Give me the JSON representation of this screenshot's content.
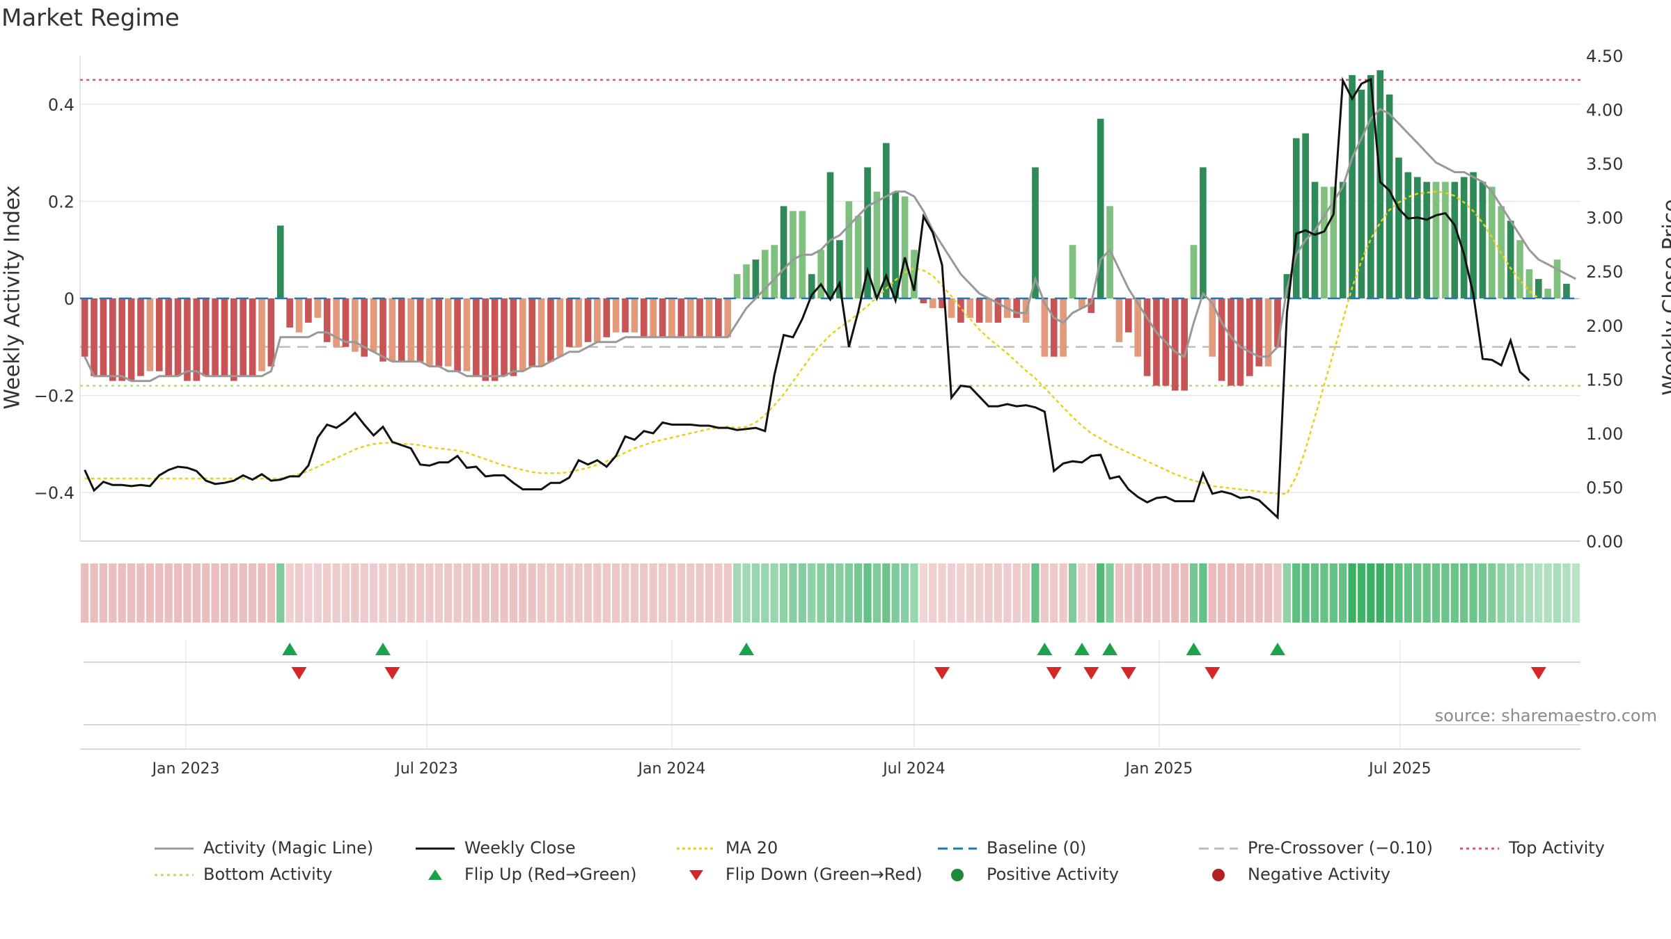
{
  "title": "Market Regime",
  "source": "source: sharemaestro.com",
  "colors": {
    "pos_dark": "#2e8b57",
    "pos_light": "#7fc07f",
    "neg_dark": "#c85455",
    "neg_light": "#e39a7b",
    "magic": "#999999",
    "close": "#111111",
    "ma": "#e6d21c",
    "baseline": "#1f77b4",
    "precross": "#bdbdbd",
    "top": "#e0536a",
    "bottom": "#b8dc6e",
    "flip_up": "#1aa34a",
    "flip_down": "#d62728"
  },
  "chart_data": {
    "type": "bar+line",
    "x_start_week": "2022-10-17",
    "x_ticks": [
      "Jan 2023",
      "Jul 2023",
      "Jan 2024",
      "Jul 2024",
      "Jan 2025",
      "Jul 2025"
    ],
    "y_left": {
      "label": "Weekly Activity Index",
      "lim": [
        -0.5,
        0.5
      ],
      "ticks": [
        -0.4,
        -0.2,
        0,
        0.2,
        0.4
      ],
      "tick_labels": [
        "−0.4",
        "−0.2",
        "0",
        "0.2",
        "0.4"
      ]
    },
    "y_right": {
      "label": "Weekly Close Price",
      "lim": [
        0,
        4.5
      ],
      "ticks": [
        0,
        0.5,
        1,
        1.5,
        2,
        2.5,
        3,
        3.5,
        4,
        4.5
      ],
      "tick_labels": [
        "0.00",
        "0.50",
        "1.00",
        "1.50",
        "2.00",
        "2.50",
        "3.00",
        "3.50",
        "4.00",
        "4.50"
      ]
    },
    "reference_lines": {
      "baseline": 0,
      "pre_crossover": -0.1,
      "top_activity": 0.45,
      "bottom_activity": -0.18
    },
    "activity": [
      -0.12,
      -0.16,
      -0.16,
      -0.17,
      -0.17,
      -0.17,
      -0.16,
      -0.15,
      -0.15,
      -0.16,
      -0.16,
      -0.17,
      -0.17,
      -0.16,
      -0.16,
      -0.16,
      -0.17,
      -0.16,
      -0.16,
      -0.15,
      -0.14,
      0.15,
      -0.06,
      -0.07,
      -0.05,
      -0.04,
      -0.09,
      -0.1,
      -0.1,
      -0.11,
      -0.12,
      -0.11,
      -0.13,
      -0.13,
      -0.13,
      -0.13,
      -0.13,
      -0.14,
      -0.14,
      -0.14,
      -0.15,
      -0.15,
      -0.16,
      -0.17,
      -0.17,
      -0.16,
      -0.16,
      -0.15,
      -0.14,
      -0.14,
      -0.13,
      -0.12,
      -0.1,
      -0.1,
      -0.09,
      -0.09,
      -0.08,
      -0.07,
      -0.07,
      -0.07,
      -0.08,
      -0.08,
      -0.08,
      -0.08,
      -0.08,
      -0.08,
      -0.08,
      -0.08,
      -0.08,
      -0.08,
      0.05,
      0.07,
      0.08,
      0.1,
      0.11,
      0.19,
      0.18,
      0.18,
      0.05,
      0.1,
      0.26,
      0.12,
      0.2,
      0.17,
      0.27,
      0.22,
      0.32,
      0.22,
      0.21,
      0.1,
      -0.01,
      -0.02,
      -0.02,
      -0.04,
      -0.05,
      -0.04,
      -0.05,
      -0.05,
      -0.05,
      -0.04,
      -0.04,
      -0.05,
      0.27,
      -0.12,
      -0.12,
      -0.12,
      0.11,
      -0.02,
      -0.03,
      0.37,
      0.19,
      -0.09,
      -0.07,
      -0.12,
      -0.16,
      -0.18,
      -0.18,
      -0.19,
      -0.19,
      0.11,
      0.27,
      -0.12,
      -0.17,
      -0.18,
      -0.18,
      -0.16,
      -0.14,
      -0.14,
      -0.1,
      0.05,
      0.33,
      0.34,
      0.24,
      0.23,
      0.23,
      0.24,
      0.46,
      0.43,
      0.46,
      0.47,
      0.42,
      0.29,
      0.26,
      0.25,
      0.24,
      0.24,
      0.24,
      0.24,
      0.25,
      0.26,
      0.24,
      0.23,
      0.19,
      0.16,
      0.12,
      0.06,
      0.04,
      0.02,
      0.08,
      0.03,
      0.0
    ],
    "magic_line": [
      -0.12,
      -0.16,
      -0.16,
      -0.16,
      -0.16,
      -0.17,
      -0.17,
      -0.17,
      -0.16,
      -0.16,
      -0.16,
      -0.15,
      -0.15,
      -0.16,
      -0.16,
      -0.16,
      -0.16,
      -0.16,
      -0.16,
      -0.16,
      -0.15,
      -0.08,
      -0.08,
      -0.08,
      -0.08,
      -0.07,
      -0.07,
      -0.08,
      -0.09,
      -0.09,
      -0.1,
      -0.11,
      -0.12,
      -0.13,
      -0.13,
      -0.13,
      -0.13,
      -0.14,
      -0.14,
      -0.15,
      -0.15,
      -0.16,
      -0.16,
      -0.16,
      -0.16,
      -0.16,
      -0.15,
      -0.15,
      -0.14,
      -0.14,
      -0.13,
      -0.12,
      -0.11,
      -0.11,
      -0.1,
      -0.09,
      -0.09,
      -0.09,
      -0.08,
      -0.08,
      -0.08,
      -0.08,
      -0.08,
      -0.08,
      -0.08,
      -0.08,
      -0.08,
      -0.08,
      -0.08,
      -0.08,
      -0.05,
      -0.02,
      0.0,
      0.02,
      0.04,
      0.06,
      0.08,
      0.09,
      0.09,
      0.1,
      0.12,
      0.13,
      0.15,
      0.17,
      0.19,
      0.2,
      0.21,
      0.22,
      0.22,
      0.21,
      0.18,
      0.14,
      0.11,
      0.08,
      0.05,
      0.03,
      0.01,
      0.0,
      -0.01,
      -0.02,
      -0.03,
      -0.03,
      0.04,
      -0.01,
      -0.04,
      -0.05,
      -0.03,
      -0.02,
      -0.01,
      0.08,
      0.1,
      0.06,
      0.02,
      -0.01,
      -0.04,
      -0.07,
      -0.09,
      -0.11,
      -0.12,
      -0.05,
      0.01,
      -0.01,
      -0.05,
      -0.08,
      -0.1,
      -0.11,
      -0.12,
      -0.12,
      -0.1,
      0.02,
      0.09,
      0.12,
      0.14,
      0.17,
      0.2,
      0.23,
      0.29,
      0.33,
      0.37,
      0.39,
      0.38,
      0.36,
      0.34,
      0.32,
      0.3,
      0.28,
      0.27,
      0.26,
      0.26,
      0.25,
      0.24,
      0.22,
      0.19,
      0.16,
      0.13,
      0.1,
      0.08,
      0.07,
      0.06,
      0.05,
      0.04
    ],
    "weekly_close": [
      0.66,
      0.47,
      0.55,
      0.52,
      0.52,
      0.51,
      0.52,
      0.51,
      0.61,
      0.66,
      0.69,
      0.68,
      0.65,
      0.56,
      0.53,
      0.54,
      0.56,
      0.61,
      0.57,
      0.62,
      0.56,
      0.57,
      0.6,
      0.6,
      0.7,
      0.96,
      1.08,
      1.05,
      1.11,
      1.19,
      1.08,
      0.98,
      1.06,
      0.92,
      0.89,
      0.86,
      0.71,
      0.7,
      0.73,
      0.73,
      0.79,
      0.68,
      0.69,
      0.6,
      0.61,
      0.61,
      0.54,
      0.48,
      0.48,
      0.48,
      0.54,
      0.54,
      0.59,
      0.75,
      0.71,
      0.75,
      0.69,
      0.79,
      0.97,
      0.94,
      1.02,
      1.0,
      1.1,
      1.08,
      1.08,
      1.08,
      1.07,
      1.07,
      1.05,
      1.05,
      1.03,
      1.04,
      1.05,
      1.02,
      1.54,
      1.91,
      1.89,
      2.06,
      2.28,
      2.38,
      2.24,
      2.39,
      1.8,
      2.13,
      2.51,
      2.25,
      2.46,
      2.23,
      2.63,
      2.32,
      3.01,
      2.86,
      2.56,
      1.33,
      1.44,
      1.43,
      1.34,
      1.25,
      1.25,
      1.27,
      1.25,
      1.26,
      1.24,
      1.2,
      0.65,
      0.72,
      0.74,
      0.73,
      0.79,
      0.8,
      0.58,
      0.6,
      0.48,
      0.41,
      0.36,
      0.4,
      0.41,
      0.37,
      0.37,
      0.37,
      0.63,
      0.44,
      0.46,
      0.44,
      0.4,
      0.41,
      0.38,
      0.3,
      0.22,
      2.12,
      2.85,
      2.88,
      2.84,
      2.87,
      3.03,
      4.27,
      4.1,
      4.24,
      4.28,
      3.33,
      3.25,
      3.08,
      2.99,
      3.0,
      2.98,
      3.02,
      3.04,
      2.93,
      2.66,
      2.29,
      1.69,
      1.68,
      1.63,
      1.86,
      1.57,
      1.49
    ],
    "ma20": [
      0.58,
      0.58,
      0.58,
      0.58,
      0.58,
      0.58,
      0.58,
      0.58,
      0.58,
      0.58,
      0.58,
      0.58,
      0.58,
      0.58,
      0.58,
      0.58,
      0.58,
      0.58,
      0.58,
      0.58,
      0.58,
      0.58,
      0.6,
      0.62,
      0.65,
      0.69,
      0.73,
      0.77,
      0.81,
      0.85,
      0.88,
      0.9,
      0.91,
      0.91,
      0.9,
      0.9,
      0.89,
      0.87,
      0.86,
      0.85,
      0.84,
      0.82,
      0.79,
      0.76,
      0.73,
      0.7,
      0.68,
      0.66,
      0.64,
      0.63,
      0.63,
      0.63,
      0.64,
      0.66,
      0.68,
      0.71,
      0.74,
      0.78,
      0.82,
      0.86,
      0.89,
      0.92,
      0.94,
      0.96,
      0.98,
      1.0,
      1.02,
      1.04,
      1.05,
      1.06,
      1.05,
      1.06,
      1.1,
      1.17,
      1.26,
      1.36,
      1.48,
      1.6,
      1.72,
      1.82,
      1.91,
      1.98,
      2.04,
      2.11,
      2.18,
      2.26,
      2.34,
      2.42,
      2.49,
      2.53,
      2.51,
      2.46,
      2.37,
      2.27,
      2.16,
      2.06,
      1.96,
      1.88,
      1.81,
      1.74,
      1.66,
      1.58,
      1.51,
      1.42,
      1.33,
      1.24,
      1.15,
      1.07,
      1.0,
      0.95,
      0.9,
      0.86,
      0.82,
      0.78,
      0.74,
      0.7,
      0.66,
      0.62,
      0.59,
      0.56,
      0.54,
      0.51,
      0.5,
      0.49,
      0.48,
      0.47,
      0.46,
      0.45,
      0.44,
      0.44,
      0.6,
      0.85,
      1.15,
      1.45,
      1.75,
      2.05,
      2.35,
      2.6,
      2.8,
      2.95,
      3.07,
      3.14,
      3.19,
      3.22,
      3.23,
      3.24,
      3.23,
      3.2,
      3.14,
      3.06,
      2.95,
      2.82,
      2.67,
      2.53,
      2.42,
      2.32,
      2.25
    ],
    "flip_up_weeks": [
      22,
      32,
      71,
      103,
      107,
      110,
      119,
      128
    ],
    "flip_down_weeks": [
      23,
      33,
      92,
      104,
      108,
      112,
      121,
      156
    ],
    "strip_intensity": [
      0.45,
      0.45,
      0.45,
      0.45,
      0.45,
      0.45,
      0.45,
      0.45,
      0.45,
      0.45,
      0.45,
      0.45,
      0.45,
      0.45,
      0.45,
      0.45,
      0.45,
      0.45,
      0.45,
      0.45,
      0.45,
      0.55,
      0.25,
      0.3,
      0.25,
      0.25,
      0.3,
      0.3,
      0.3,
      0.35,
      0.3,
      0.3,
      0.3,
      0.3,
      0.35,
      0.35,
      0.35,
      0.35,
      0.35,
      0.35,
      0.35,
      0.35,
      0.4,
      0.4,
      0.4,
      0.4,
      0.4,
      0.4,
      0.4,
      0.35,
      0.35,
      0.35,
      0.35,
      0.35,
      0.35,
      0.35,
      0.35,
      0.35,
      0.35,
      0.35,
      0.35,
      0.35,
      0.35,
      0.35,
      0.35,
      0.35,
      0.35,
      0.35,
      0.35,
      0.35,
      0.35,
      0.35,
      0.4,
      0.4,
      0.4,
      0.45,
      0.5,
      0.5,
      0.45,
      0.5,
      0.55,
      0.5,
      0.55,
      0.6,
      0.7,
      0.55,
      0.65,
      0.55,
      0.5,
      0.4,
      0.2,
      0.25,
      0.25,
      0.25,
      0.25,
      0.25,
      0.25,
      0.3,
      0.3,
      0.3,
      0.3,
      0.3,
      0.7,
      0.35,
      0.35,
      0.35,
      0.55,
      0.25,
      0.3,
      0.8,
      0.55,
      0.4,
      0.4,
      0.45,
      0.45,
      0.45,
      0.45,
      0.5,
      0.5,
      0.6,
      0.7,
      0.5,
      0.5,
      0.5,
      0.5,
      0.45,
      0.45,
      0.45,
      0.35,
      0.45,
      0.75,
      0.75,
      0.7,
      0.7,
      0.7,
      0.7,
      0.95,
      0.9,
      0.95,
      0.95,
      0.85,
      0.75,
      0.7,
      0.65,
      0.65,
      0.65,
      0.65,
      0.65,
      0.65,
      0.65,
      0.6,
      0.55,
      0.45,
      0.4,
      0.35,
      0.3,
      0.25,
      0.25,
      0.3,
      0.25,
      0.2
    ]
  },
  "legend": [
    {
      "label": "Activity (Magic Line)",
      "kind": "magic"
    },
    {
      "label": "Weekly Close",
      "kind": "close"
    },
    {
      "label": "MA 20",
      "kind": "ma"
    },
    {
      "label": "Baseline (0)",
      "kind": "baseline"
    },
    {
      "label": "Pre-Crossover (−0.10)",
      "kind": "precross"
    },
    {
      "label": "Top Activity",
      "kind": "top"
    },
    {
      "label": "Bottom Activity",
      "kind": "bottom"
    },
    {
      "label": "Flip Up (Red→Green)",
      "kind": "flip_up"
    },
    {
      "label": "Flip Down (Green→Red)",
      "kind": "flip_down"
    },
    {
      "label": "Positive Activity",
      "kind": "pos_dot"
    },
    {
      "label": "Negative Activity",
      "kind": "neg_dot"
    }
  ]
}
